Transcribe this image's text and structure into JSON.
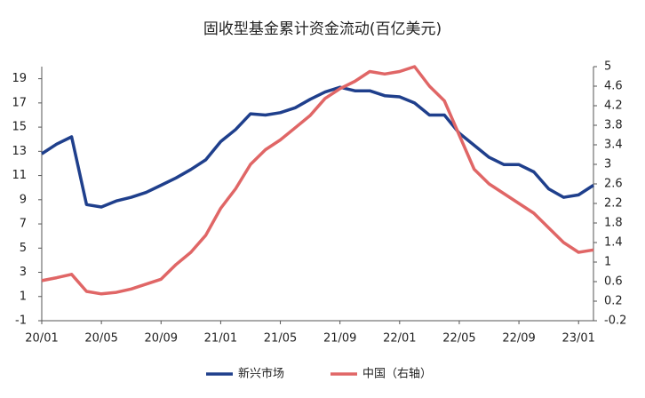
{
  "chart_data": {
    "type": "line",
    "title": "固收型基金累计资金流动(百亿美元)",
    "categories": [
      "20/01",
      null,
      null,
      null,
      "20/05",
      null,
      null,
      null,
      "20/09",
      null,
      null,
      null,
      "21/01",
      null,
      null,
      null,
      "21/05",
      null,
      null,
      null,
      "21/09",
      null,
      null,
      null,
      "22/01",
      null,
      null,
      null,
      "22/05",
      null,
      null,
      null,
      "22/09",
      null,
      null,
      null,
      "23/01",
      null
    ],
    "series": [
      {
        "name": "新兴市场",
        "color": "#1f3f8c",
        "values": [
          12.8,
          13.6,
          14.2,
          8.6,
          8.4,
          8.9,
          9.2,
          9.6,
          10.2,
          10.8,
          11.5,
          12.3,
          13.8,
          14.8,
          16.1,
          16.0,
          16.2,
          16.6,
          17.3,
          17.9,
          18.3,
          18.0,
          18.0,
          17.6,
          17.5,
          17.0,
          16.0,
          16.0,
          14.5,
          13.5,
          12.5,
          11.9,
          11.9,
          11.3,
          9.9,
          9.2,
          9.4,
          10.2
        ]
      },
      {
        "name": "中国（右轴）",
        "color": "#e06666",
        "axis": "y2",
        "values": [
          0.62,
          0.68,
          0.75,
          0.4,
          0.35,
          0.38,
          0.45,
          0.55,
          0.65,
          0.95,
          1.2,
          1.55,
          2.1,
          2.5,
          3.0,
          3.3,
          3.5,
          3.75,
          4.0,
          4.35,
          4.55,
          4.7,
          4.9,
          4.85,
          4.9,
          5.0,
          4.6,
          4.3,
          3.6,
          2.9,
          2.6,
          2.4,
          2.2,
          2.0,
          1.7,
          1.4,
          1.2,
          1.25
        ]
      }
    ],
    "ylim": [
      -1,
      20
    ],
    "yticks": [
      -1,
      1,
      3,
      5,
      7,
      9,
      11,
      13,
      15,
      17,
      19
    ],
    "y2lim": [
      -0.2,
      5
    ],
    "y2ticks": [
      -0.2,
      0.2,
      0.6,
      1,
      1.4,
      1.8,
      2.2,
      2.6,
      3,
      3.4,
      3.8,
      4.2,
      4.6,
      5
    ],
    "grid": false,
    "legend": "bottom"
  }
}
